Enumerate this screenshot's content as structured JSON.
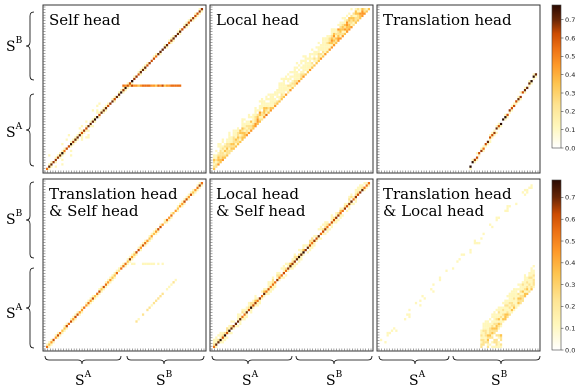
{
  "panels": [
    {
      "title_lines": [
        "Self head"
      ],
      "pattern": "self"
    },
    {
      "title_lines": [
        "Local head"
      ],
      "pattern": "local"
    },
    {
      "title_lines": [
        "Translation head"
      ],
      "pattern": "translation"
    },
    {
      "title_lines": [
        "Translation head",
        "& Self head"
      ],
      "pattern": "trans-self"
    },
    {
      "title_lines": [
        "Local head",
        "& Self head"
      ],
      "pattern": "local-self"
    },
    {
      "title_lines": [
        "Translation head",
        "& Local head"
      ],
      "pattern": "trans-local"
    }
  ],
  "axis_labels": {
    "left_rows": [
      {
        "base": "S",
        "sup": "B"
      },
      {
        "base": "S",
        "sup": "A"
      }
    ],
    "bottom_cols": [
      {
        "base": "S",
        "sup": "A"
      },
      {
        "base": "S",
        "sup": "B"
      }
    ]
  },
  "colorbar": {
    "ticks": [
      "0.0",
      "0.1",
      "0.2",
      "0.3",
      "0.4",
      "0.5",
      "0.6",
      "0.7"
    ],
    "min": 0.0,
    "max": 0.78,
    "colors": [
      "#ffffff",
      "#fff7bc",
      "#fee391",
      "#fec44f",
      "#fe9929",
      "#ec7014",
      "#cc4c02",
      "#993404",
      "#662506",
      "#2a0a02"
    ]
  }
}
